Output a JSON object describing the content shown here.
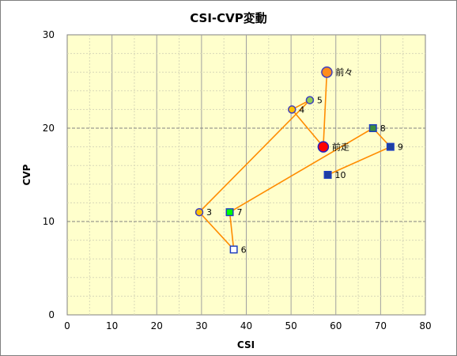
{
  "chart_data": {
    "type": "scatter",
    "title": "CSI-CVP変動",
    "xlabel": "CSI",
    "ylabel": "CVP",
    "xlim": [
      0,
      80
    ],
    "ylim": [
      0,
      30
    ],
    "x_ticks": [
      "0",
      "10",
      "20",
      "30",
      "40",
      "50",
      "60",
      "70",
      "80"
    ],
    "y_ticks": [
      "0",
      "10",
      "20",
      "30"
    ],
    "grid": true,
    "plot_background": "#ffffcc",
    "path_color": "#ff8c00",
    "path_order": [
      "前々",
      "前走",
      "4",
      "5",
      "3",
      "6",
      "7",
      "8",
      "9",
      "10"
    ],
    "points": [
      {
        "label": "3",
        "x": 29.5,
        "y": 11,
        "shape": "circle",
        "fill": "#ffc000",
        "stroke": "#3f3fbf",
        "size": "small"
      },
      {
        "label": "4",
        "x": 50.2,
        "y": 22,
        "shape": "circle",
        "fill": "#ffc000",
        "stroke": "#3f3fbf",
        "size": "small"
      },
      {
        "label": "5",
        "x": 54.2,
        "y": 23,
        "shape": "circle",
        "fill": "#92d050",
        "stroke": "#3f3fbf",
        "size": "small"
      },
      {
        "label": "前々",
        "x": 58.0,
        "y": 26,
        "shape": "circle",
        "fill": "#ff8c1a",
        "stroke": "#3f3fbf",
        "size": "large"
      },
      {
        "label": "前走",
        "x": 57.2,
        "y": 18,
        "shape": "circle",
        "fill": "#ff0000",
        "stroke": "#1f1fbf",
        "size": "large"
      },
      {
        "label": "6",
        "x": 37.2,
        "y": 7,
        "shape": "square",
        "fill": "#ffffff",
        "stroke": "#1f3fbf",
        "size": "small"
      },
      {
        "label": "7",
        "x": 36.3,
        "y": 11,
        "shape": "square",
        "fill": "#00ff00",
        "stroke": "#1f3fbf",
        "size": "small"
      },
      {
        "label": "8",
        "x": 68.3,
        "y": 20,
        "shape": "square",
        "fill": "#3a8c3a",
        "stroke": "#1f3fbf",
        "size": "small"
      },
      {
        "label": "9",
        "x": 72.2,
        "y": 18,
        "shape": "square",
        "fill": "#1f3f9f",
        "stroke": "#1f3fbf",
        "size": "small"
      },
      {
        "label": "10",
        "x": 58.2,
        "y": 15,
        "shape": "square",
        "fill": "#1f3f9f",
        "stroke": "#1f3fbf",
        "size": "small"
      }
    ]
  }
}
